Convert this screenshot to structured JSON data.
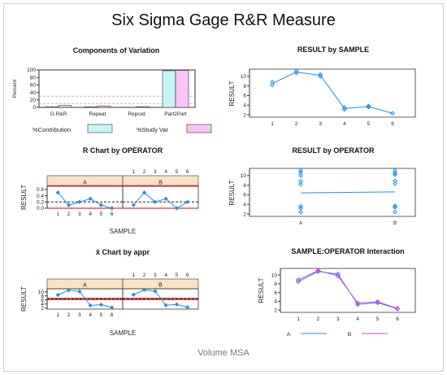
{
  "title": "Six Sigma Gage R&R Measure",
  "footer": "Volume MSA",
  "colors": {
    "blue": "#1f8fe6",
    "magenta": "#e040e0",
    "cyan_fill": "#c8f4f8",
    "pink_fill": "#f6c6f4",
    "strip": "#fbe2c5",
    "red": "#e03030",
    "gray": "#999999"
  },
  "chart_data": [
    {
      "id": "components",
      "type": "bar",
      "title": "Components of Variation",
      "ylabel": "Percent",
      "ylim": [
        0,
        100
      ],
      "yticks": [
        0,
        20,
        40,
        60,
        80,
        100
      ],
      "categories": [
        "G.R&R",
        "Repeat",
        "Reprod",
        "Part2Part"
      ],
      "series": [
        {
          "name": "%Contribution",
          "values": [
            2,
            1.5,
            0.5,
            98
          ]
        },
        {
          "name": "%Study Var",
          "values": [
            5,
            4,
            2,
            99
          ]
        }
      ],
      "reference_lines": [
        10,
        30
      ]
    },
    {
      "id": "r_chart",
      "type": "line",
      "title": "R Chart by OPERATOR",
      "xlabel": "SAMPLE",
      "ylabel": "RESULT",
      "ylim": [
        0,
        0.7
      ],
      "yticks": [
        0.0,
        0.2,
        0.4,
        0.6
      ],
      "ytick_labels": [
        "0.0",
        "0.2",
        "0.4",
        "0.6"
      ],
      "x": [
        1,
        2,
        3,
        4,
        5,
        6
      ],
      "panels": [
        {
          "name": "A",
          "values": [
            0.5,
            0.1,
            0.2,
            0.3,
            0.1,
            0.0
          ]
        },
        {
          "name": "B",
          "values": [
            0.1,
            0.5,
            0.2,
            0.3,
            0.0,
            0.2
          ]
        }
      ],
      "center_line": 0.2,
      "ucl": 0.72,
      "lcl": 0.0
    },
    {
      "id": "result_by_sample",
      "type": "line",
      "title": "RESULT by SAMPLE",
      "ylabel": "RESULT",
      "ylim": [
        1.5,
        11.5
      ],
      "yticks": [
        2,
        4,
        6,
        8,
        10
      ],
      "x": [
        1,
        2,
        3,
        4,
        5,
        6
      ],
      "means": [
        8.5,
        10.9,
        10.2,
        3.3,
        3.7,
        2.3
      ],
      "points": [
        [
          1,
          8.2
        ],
        [
          1,
          8.8
        ],
        [
          2,
          10.7
        ],
        [
          2,
          11.1
        ],
        [
          3,
          10.0
        ],
        [
          3,
          10.4
        ],
        [
          4,
          3.1
        ],
        [
          4,
          3.5
        ],
        [
          5,
          3.6
        ],
        [
          5,
          3.8
        ],
        [
          6,
          2.3
        ]
      ]
    },
    {
      "id": "result_by_operator",
      "type": "scatter",
      "title": "RESULT by OPERATOR",
      "ylabel": "RESULT",
      "ylim": [
        1.5,
        11.5
      ],
      "yticks": [
        2,
        4,
        6,
        8,
        10
      ],
      "categories": [
        "A",
        "B"
      ],
      "means": [
        6.4,
        6.6
      ],
      "points": [
        [
          "A",
          11.0
        ],
        [
          "A",
          10.6
        ],
        [
          "A",
          10.0
        ],
        [
          "A",
          8.8
        ],
        [
          "A",
          8.2
        ],
        [
          "A",
          3.6
        ],
        [
          "A",
          3.2
        ],
        [
          "A",
          2.4
        ],
        [
          "B",
          11.0
        ],
        [
          "B",
          10.5
        ],
        [
          "B",
          10.2
        ],
        [
          "B",
          8.9
        ],
        [
          "B",
          8.3
        ],
        [
          "B",
          3.7
        ],
        [
          "B",
          3.4
        ],
        [
          "B",
          2.4
        ]
      ]
    },
    {
      "id": "xbar_chart",
      "type": "line",
      "title": "x̄ Chart by appr",
      "xlabel": "SAMPLE",
      "ylabel": "RESULT",
      "ylim": [
        1.5,
        11.5
      ],
      "yticks": [
        2,
        4,
        6,
        8,
        10
      ],
      "x": [
        1,
        2,
        3,
        4,
        5,
        6
      ],
      "panels": [
        {
          "name": "A",
          "values": [
            8.5,
            10.8,
            10.2,
            3.3,
            3.7,
            2.3
          ]
        },
        {
          "name": "B",
          "values": [
            8.6,
            11.0,
            10.3,
            3.4,
            3.8,
            2.4
          ]
        }
      ],
      "center_line": 6.5,
      "ucl": 6.8,
      "lcl": 6.2
    },
    {
      "id": "interaction",
      "type": "line",
      "title": "SAMPLE:OPERATOR Interaction",
      "ylabel": "RESULT",
      "ylim": [
        1.5,
        11.5
      ],
      "yticks": [
        2,
        4,
        6,
        8,
        10
      ],
      "x": [
        1,
        2,
        3,
        4,
        5,
        6
      ],
      "series": [
        {
          "name": "A",
          "values": [
            8.5,
            10.8,
            10.2,
            3.3,
            3.7,
            2.3
          ]
        },
        {
          "name": "B",
          "values": [
            8.9,
            11.0,
            9.8,
            3.6,
            3.9,
            2.4
          ]
        }
      ]
    }
  ]
}
